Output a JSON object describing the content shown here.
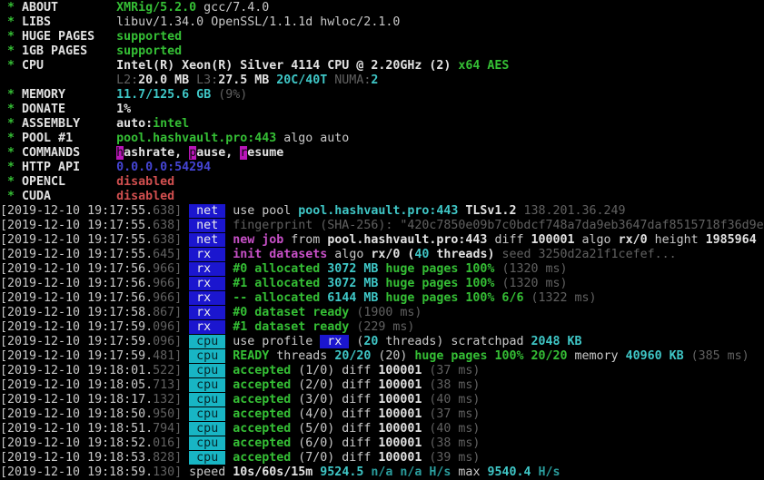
{
  "app": "xmrig-terminal-output",
  "colors": {
    "background": "#000000",
    "default_text": "#c9c9c9",
    "green": "#35bf35",
    "cyan": "#3fc7c7",
    "dim_cyan": "#2a9d9d",
    "dark_gray": "#616161",
    "magenta": "#c750c7",
    "blue": "#4545d5",
    "red": "#d14f4f",
    "hotkey_bg": "#b816b8",
    "tag_net_bg": "#1b16cf",
    "tag_cpu_bg": "#18b5c4"
  },
  "tags": {
    "net": {
      "text": " net ",
      "cls": "tag-net"
    },
    "rx": {
      "text": " rx  ",
      "cls": "tag-rx"
    },
    "cpu": {
      "text": " cpu ",
      "cls": "tag-cpu"
    },
    "speed": {
      "text": "speed",
      "cls": "tag-speed"
    }
  },
  "header_lines": [
    {
      "spans": [
        [
          "g",
          " * "
        ],
        [
          "wb",
          "ABOUT"
        ],
        [
          "w",
          "        "
        ],
        [
          "g",
          "XMRig/5.2.0"
        ],
        [
          "w",
          " gcc/7.4.0"
        ]
      ]
    },
    {
      "spans": [
        [
          "g",
          " * "
        ],
        [
          "wb",
          "LIBS"
        ],
        [
          "w",
          "         "
        ],
        [
          "w",
          "libuv/1.34.0 OpenSSL/1.1.1d hwloc/2.1.0"
        ]
      ]
    },
    {
      "spans": [
        [
          "g",
          " * "
        ],
        [
          "wb",
          "HUGE PAGES"
        ],
        [
          "w",
          "   "
        ],
        [
          "g",
          "supported"
        ]
      ]
    },
    {
      "spans": [
        [
          "g",
          " * "
        ],
        [
          "wb",
          "1GB PAGES"
        ],
        [
          "w",
          "    "
        ],
        [
          "g",
          "supported"
        ]
      ]
    },
    {
      "spans": [
        [
          "g",
          " * "
        ],
        [
          "wb",
          "CPU"
        ],
        [
          "w",
          "          "
        ],
        [
          "wb",
          "Intel(R) Xeon(R) Silver 4114 CPU @ 2.20GHz (2) "
        ],
        [
          "g",
          "x64 AES"
        ]
      ]
    },
    {
      "spans": [
        [
          "w",
          "                "
        ],
        [
          "d",
          "L2:"
        ],
        [
          "wb",
          "20.0 MB "
        ],
        [
          "d",
          "L3:"
        ],
        [
          "wb",
          "27.5 MB "
        ],
        [
          "c",
          "20C/40T "
        ],
        [
          "d",
          "NUMA:"
        ],
        [
          "c",
          "2"
        ]
      ]
    },
    {
      "spans": [
        [
          "g",
          " * "
        ],
        [
          "wb",
          "MEMORY"
        ],
        [
          "w",
          "       "
        ],
        [
          "c",
          "11.7/125.6 GB "
        ],
        [
          "d",
          "(9%)"
        ]
      ]
    },
    {
      "spans": [
        [
          "g",
          " * "
        ],
        [
          "wb",
          "DONATE"
        ],
        [
          "w",
          "       "
        ],
        [
          "wb",
          "1%"
        ]
      ]
    },
    {
      "spans": [
        [
          "g",
          " * "
        ],
        [
          "wb",
          "ASSEMBLY"
        ],
        [
          "w",
          "     "
        ],
        [
          "wb",
          "auto:"
        ],
        [
          "g",
          "intel"
        ]
      ]
    },
    {
      "spans": [
        [
          "g",
          " * "
        ],
        [
          "wb",
          "POOL #1"
        ],
        [
          "w",
          "      "
        ],
        [
          "g",
          "pool.hashvault.pro:443"
        ],
        [
          "w",
          " algo auto"
        ]
      ]
    },
    {
      "spans": [
        [
          "g",
          " * "
        ],
        [
          "wb",
          "COMMANDS"
        ],
        [
          "w",
          "     "
        ],
        [
          "k",
          "h"
        ],
        [
          "wb",
          "ashrate, "
        ],
        [
          "k",
          "p"
        ],
        [
          "wb",
          "ause, "
        ],
        [
          "k",
          "r"
        ],
        [
          "wb",
          "esume"
        ]
      ]
    },
    {
      "spans": [
        [
          "g",
          " * "
        ],
        [
          "wb",
          "HTTP API"
        ],
        [
          "w",
          "     "
        ],
        [
          "b",
          "0.0.0.0:54294"
        ]
      ]
    },
    {
      "spans": [
        [
          "g",
          " * "
        ],
        [
          "wb",
          "OPENCL"
        ],
        [
          "w",
          "       "
        ],
        [
          "r",
          "disabled"
        ]
      ]
    },
    {
      "spans": [
        [
          "g",
          " * "
        ],
        [
          "wb",
          "CUDA"
        ],
        [
          "w",
          "         "
        ],
        [
          "r",
          "disabled"
        ]
      ]
    }
  ],
  "log_lines": [
    {
      "ts": "[2019-12-10 19:17:55.",
      "ms": "638]",
      "tag": "net",
      "spans": [
        [
          "w",
          "use pool "
        ],
        [
          "c",
          "pool.hashvault.pro:443 "
        ],
        [
          "wb",
          "TLSv1.2 "
        ],
        [
          "d",
          "138.201.36.249"
        ]
      ]
    },
    {
      "ts": "[2019-12-10 19:17:55.",
      "ms": "638]",
      "tag": "net",
      "spans": [
        [
          "d",
          "fingerprint (SHA-256): \"420c7850e09b7c0bdcf748a7da9eb3647daf8515718f36d9e"
        ]
      ]
    },
    {
      "ts": "[2019-12-10 19:17:55.",
      "ms": "638]",
      "tag": "net",
      "spans": [
        [
          "m",
          "new job"
        ],
        [
          "w",
          " from "
        ],
        [
          "wb",
          "pool.hashvault.pro:443"
        ],
        [
          "w",
          " diff "
        ],
        [
          "wb",
          "100001"
        ],
        [
          "w",
          " algo "
        ],
        [
          "wb",
          "rx/0"
        ],
        [
          "w",
          " height "
        ],
        [
          "wb",
          "1985964"
        ]
      ]
    },
    {
      "ts": "[2019-12-10 19:17:55.",
      "ms": "645]",
      "tag": "rx",
      "spans": [
        [
          "m",
          "init datasets"
        ],
        [
          "w",
          " algo "
        ],
        [
          "wb",
          "rx/0 ("
        ],
        [
          "c",
          "40"
        ],
        [
          "wb",
          " threads)"
        ],
        [
          "d",
          " seed 3250d2a21f1cefef..."
        ]
      ]
    },
    {
      "ts": "[2019-12-10 19:17:56.",
      "ms": "966]",
      "tag": "rx",
      "spans": [
        [
          "g",
          "#0 allocated"
        ],
        [
          "c",
          " 3072 MB"
        ],
        [
          "g",
          " huge pages 100%"
        ],
        [
          "d",
          " (1320 ms)"
        ]
      ]
    },
    {
      "ts": "[2019-12-10 19:17:56.",
      "ms": "966]",
      "tag": "rx",
      "spans": [
        [
          "g",
          "#1 allocated"
        ],
        [
          "c",
          " 3072 MB"
        ],
        [
          "g",
          " huge pages 100%"
        ],
        [
          "d",
          " (1320 ms)"
        ]
      ]
    },
    {
      "ts": "[2019-12-10 19:17:56.",
      "ms": "966]",
      "tag": "rx",
      "spans": [
        [
          "g",
          "-- allocated"
        ],
        [
          "c",
          " 6144 MB"
        ],
        [
          "g",
          " huge pages 100% 6/6"
        ],
        [
          "d",
          " (1322 ms)"
        ]
      ]
    },
    {
      "ts": "[2019-12-10 19:17:58.",
      "ms": "867]",
      "tag": "rx",
      "spans": [
        [
          "g",
          "#0 dataset ready"
        ],
        [
          "d",
          " (1900 ms)"
        ]
      ]
    },
    {
      "ts": "[2019-12-10 19:17:59.",
      "ms": "096]",
      "tag": "rx",
      "spans": [
        [
          "g",
          "#1 dataset ready"
        ],
        [
          "d",
          " (229 ms)"
        ]
      ]
    },
    {
      "ts": "[2019-12-10 19:17:59.",
      "ms": "096]",
      "tag": "cpu",
      "spans": [
        [
          "w",
          "use profile "
        ],
        [
          "tagrx",
          " rx "
        ],
        [
          "w",
          " ("
        ],
        [
          "c",
          "20"
        ],
        [
          "w",
          " threads) scratchpad "
        ],
        [
          "c",
          "2048 KB"
        ]
      ]
    },
    {
      "ts": "[2019-12-10 19:17:59.",
      "ms": "481]",
      "tag": "cpu",
      "spans": [
        [
          "g",
          "READY"
        ],
        [
          "w",
          " threads "
        ],
        [
          "c",
          "20/20"
        ],
        [
          "w",
          " (20) "
        ],
        [
          "g",
          "huge pages 100% 20/20"
        ],
        [
          "w",
          " memory "
        ],
        [
          "c",
          "40960 KB"
        ],
        [
          "d",
          " (385 ms)"
        ]
      ]
    },
    {
      "ts": "[2019-12-10 19:18:01.",
      "ms": "522]",
      "tag": "cpu",
      "spans": [
        [
          "g",
          "accepted"
        ],
        [
          "w",
          " (1/0) diff "
        ],
        [
          "wb",
          "100001"
        ],
        [
          "d",
          " (37 ms)"
        ]
      ]
    },
    {
      "ts": "[2019-12-10 19:18:05.",
      "ms": "713]",
      "tag": "cpu",
      "spans": [
        [
          "g",
          "accepted"
        ],
        [
          "w",
          " (2/0) diff "
        ],
        [
          "wb",
          "100001"
        ],
        [
          "d",
          " (38 ms)"
        ]
      ]
    },
    {
      "ts": "[2019-12-10 19:18:17.",
      "ms": "132]",
      "tag": "cpu",
      "spans": [
        [
          "g",
          "accepted"
        ],
        [
          "w",
          " (3/0) diff "
        ],
        [
          "wb",
          "100001"
        ],
        [
          "d",
          " (40 ms)"
        ]
      ]
    },
    {
      "ts": "[2019-12-10 19:18:50.",
      "ms": "950]",
      "tag": "cpu",
      "spans": [
        [
          "g",
          "accepted"
        ],
        [
          "w",
          " (4/0) diff "
        ],
        [
          "wb",
          "100001"
        ],
        [
          "d",
          " (37 ms)"
        ]
      ]
    },
    {
      "ts": "[2019-12-10 19:18:51.",
      "ms": "794]",
      "tag": "cpu",
      "spans": [
        [
          "g",
          "accepted"
        ],
        [
          "w",
          " (5/0) diff "
        ],
        [
          "wb",
          "100001"
        ],
        [
          "d",
          " (40 ms)"
        ]
      ]
    },
    {
      "ts": "[2019-12-10 19:18:52.",
      "ms": "016]",
      "tag": "cpu",
      "spans": [
        [
          "g",
          "accepted"
        ],
        [
          "w",
          " (6/0) diff "
        ],
        [
          "wb",
          "100001"
        ],
        [
          "d",
          " (38 ms)"
        ]
      ]
    },
    {
      "ts": "[2019-12-10 19:18:53.",
      "ms": "828]",
      "tag": "cpu",
      "spans": [
        [
          "g",
          "accepted"
        ],
        [
          "w",
          " (7/0) diff "
        ],
        [
          "wb",
          "100001"
        ],
        [
          "d",
          " (39 ms)"
        ]
      ]
    },
    {
      "ts": "[2019-12-10 19:18:59.",
      "ms": "130]",
      "tag": "speed",
      "spans": [
        [
          "wb",
          "10s/60s/15m "
        ],
        [
          "c",
          "9524.5 "
        ],
        [
          "c2",
          "n/a n/a "
        ],
        [
          "c2",
          "H/s"
        ],
        [
          "w",
          " max "
        ],
        [
          "c",
          "9540.4 "
        ],
        [
          "c2",
          "H/s"
        ]
      ]
    }
  ]
}
